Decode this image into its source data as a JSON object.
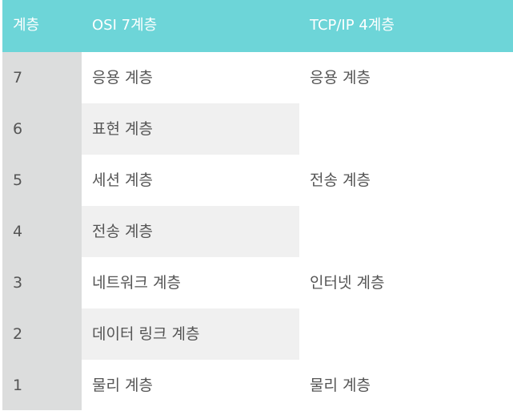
{
  "header": {
    "col_layer": "계층",
    "col_osi": "OSI 7계층",
    "col_tcpip": "TCP/IP 4계층"
  },
  "rows": [
    {
      "layer": "7",
      "osi": "응용 계층",
      "tcpip": "응용 계층"
    },
    {
      "layer": "6",
      "osi": "표현 계층",
      "tcpip": ""
    },
    {
      "layer": "5",
      "osi": "세션 계층",
      "tcpip": "전송 계층"
    },
    {
      "layer": "4",
      "osi": "전송 계층",
      "tcpip": ""
    },
    {
      "layer": "3",
      "osi": "네트워크 계층",
      "tcpip": "인터넷 계층"
    },
    {
      "layer": "2",
      "osi": "데이터 링크 계층",
      "tcpip": ""
    },
    {
      "layer": "1",
      "osi": "물리 계층",
      "tcpip": "물리 계층"
    }
  ],
  "colors": {
    "header_bg": "#6dd5d8",
    "header_text": "#ffffff",
    "layer_column_bg": "#dcdddd",
    "striped_row_bg": "#f0f0f0",
    "body_text": "#555555"
  }
}
